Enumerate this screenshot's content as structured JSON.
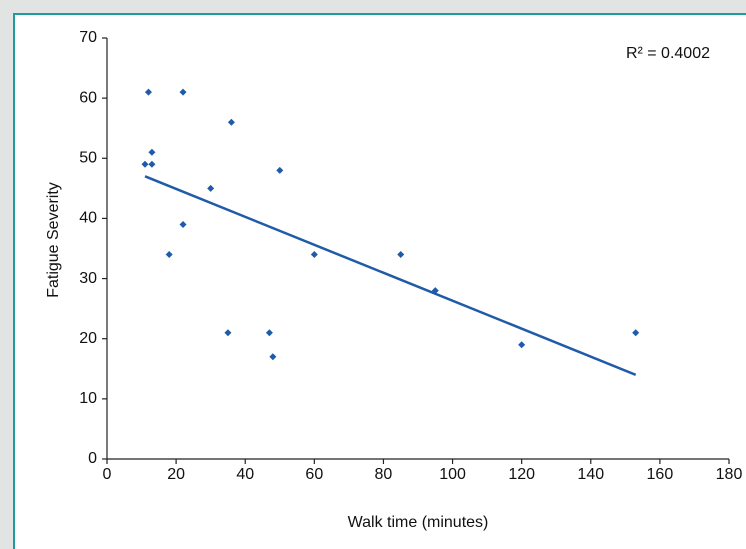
{
  "chart_data": {
    "type": "scatter",
    "x_label": "Walk time (minutes)",
    "y_label": "Fatigue Severity",
    "annotation": "R² = 0.4002",
    "xlim": [
      0,
      180
    ],
    "xticks": [
      0,
      20,
      40,
      60,
      80,
      100,
      120,
      140,
      160,
      180
    ],
    "ylim": [
      0,
      70
    ],
    "yticks": [
      0,
      10,
      20,
      30,
      40,
      50,
      60,
      70
    ],
    "color": "#1f5ba8",
    "x": [
      11,
      12,
      13,
      13,
      18,
      22,
      22,
      30,
      35,
      36,
      47,
      48,
      50,
      60,
      85,
      95,
      120,
      153
    ],
    "y": [
      49,
      61,
      51,
      49,
      34,
      61,
      39,
      45,
      21,
      56,
      21,
      17,
      48,
      34,
      34,
      28,
      19,
      21
    ],
    "trendline": {
      "x": [
        11,
        153
      ],
      "y": [
        47,
        14
      ],
      "color": "#1f5ba8"
    }
  }
}
